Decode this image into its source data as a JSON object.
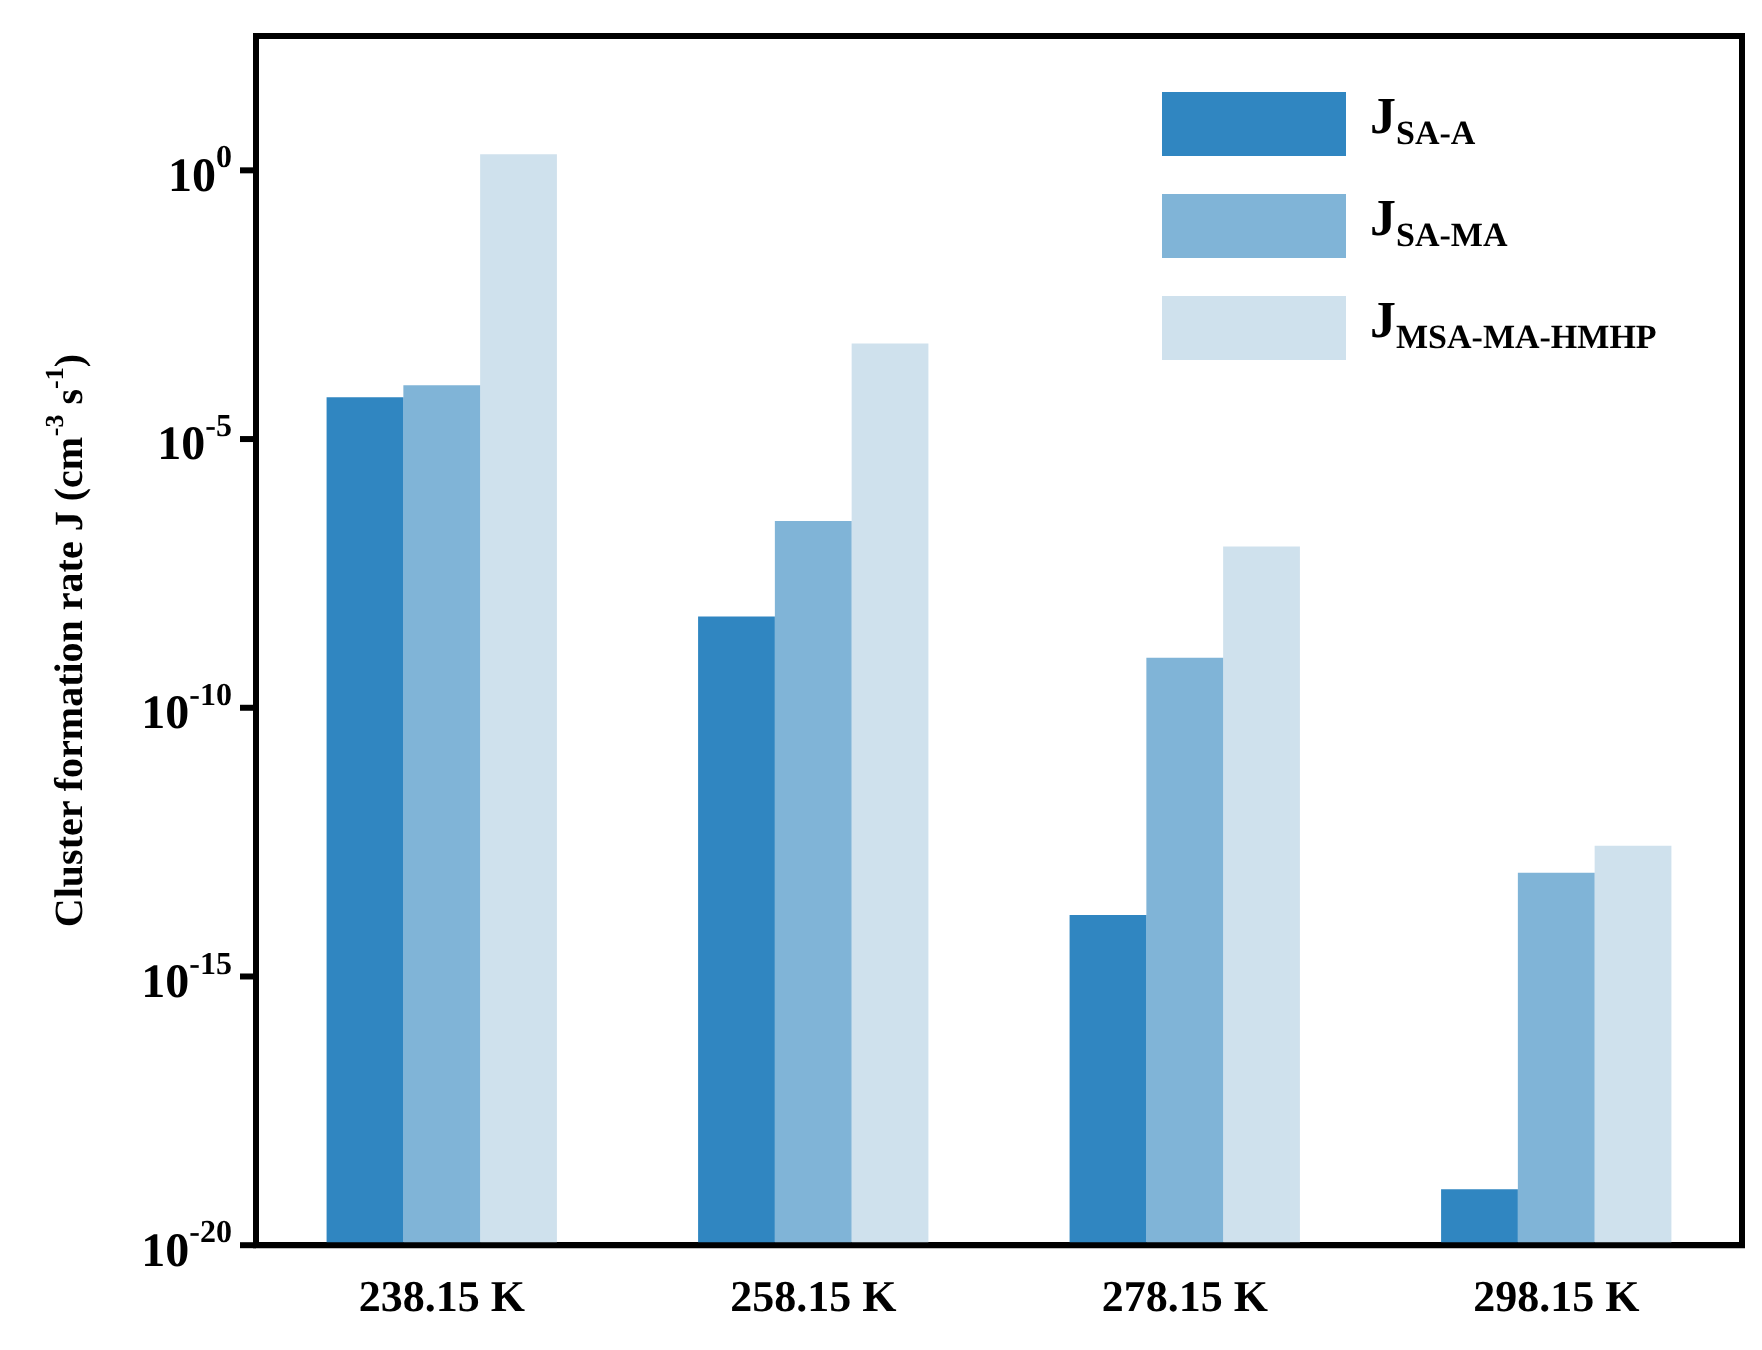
{
  "chart_data": {
    "type": "bar",
    "ylabel": "Cluster formation rate J (cm$^{-3}$ s$^{-1}$)",
    "categories": [
      "238.15 K",
      "258.15 K",
      "278.15 K",
      "298.15 K"
    ],
    "series": [
      {
        "name": "J$_{SA-A}$",
        "color": "#3086c1",
        "values": [
          6e-05,
          5e-09,
          1.4e-14,
          1.1e-19
        ]
      },
      {
        "name": "J$_{SA-MA}$",
        "color": "#80b4d7",
        "values": [
          0.0001,
          3e-07,
          8.5e-10,
          8.5e-14
        ]
      },
      {
        "name": "J$_{MSA-MA-HMHP}$",
        "color": "#cfe1ed",
        "values": [
          2,
          0.0006,
          1e-07,
          2.7e-13
        ]
      }
    ],
    "log": "y",
    "ylim": [
      1e-20,
      316
    ],
    "yticks": [
      {
        "value": 1e-20,
        "label": "10$^{-20}$"
      },
      {
        "value": 1e-15,
        "label": "10$^{-15}$"
      },
      {
        "value": 1e-10,
        "label": "10$^{-10}$"
      },
      {
        "value": 1e-05,
        "label": "10$^{-5}$"
      },
      {
        "value": 1,
        "label": "10$^{0}$"
      }
    ],
    "grid": false,
    "legend": "top right"
  }
}
